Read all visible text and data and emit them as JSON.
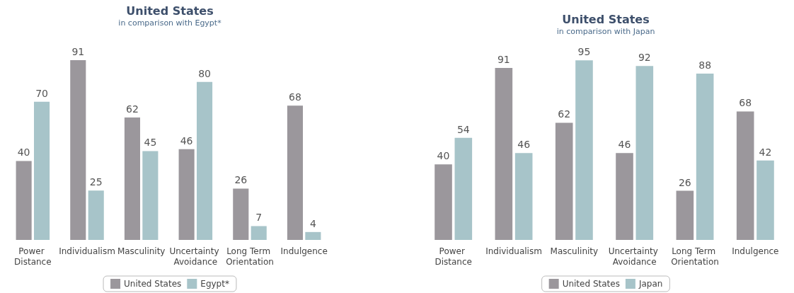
{
  "chart_data": [
    {
      "type": "bar",
      "title": "United States",
      "subtitle": "in comparison with Egypt*",
      "categories": [
        "Power Distance",
        "Individualism",
        "Masculinity",
        "Uncertainty Avoidance",
        "Long Term Orientation",
        "Indulgence"
      ],
      "series": [
        {
          "name": "United States",
          "color": "#9b979c",
          "values": [
            40,
            91,
            62,
            46,
            26,
            68
          ]
        },
        {
          "name": "Egypt*",
          "color": "#a7c4c9",
          "values": [
            70,
            25,
            45,
            80,
            7,
            4
          ]
        }
      ],
      "data_labels": true,
      "legend": "bottom"
    },
    {
      "type": "bar",
      "title": "United States",
      "subtitle": "in comparison with Japan",
      "categories": [
        "Power Distance",
        "Individualism",
        "Masculinity",
        "Uncertainty Avoidance",
        "Long Term Orientation",
        "Indulgence"
      ],
      "series": [
        {
          "name": "United States",
          "color": "#9b979c",
          "values": [
            40,
            91,
            62,
            46,
            26,
            68
          ]
        },
        {
          "name": "Japan",
          "color": "#a7c4c9",
          "values": [
            54,
            46,
            95,
            92,
            88,
            42
          ]
        }
      ],
      "data_labels": true,
      "legend": "bottom"
    }
  ]
}
